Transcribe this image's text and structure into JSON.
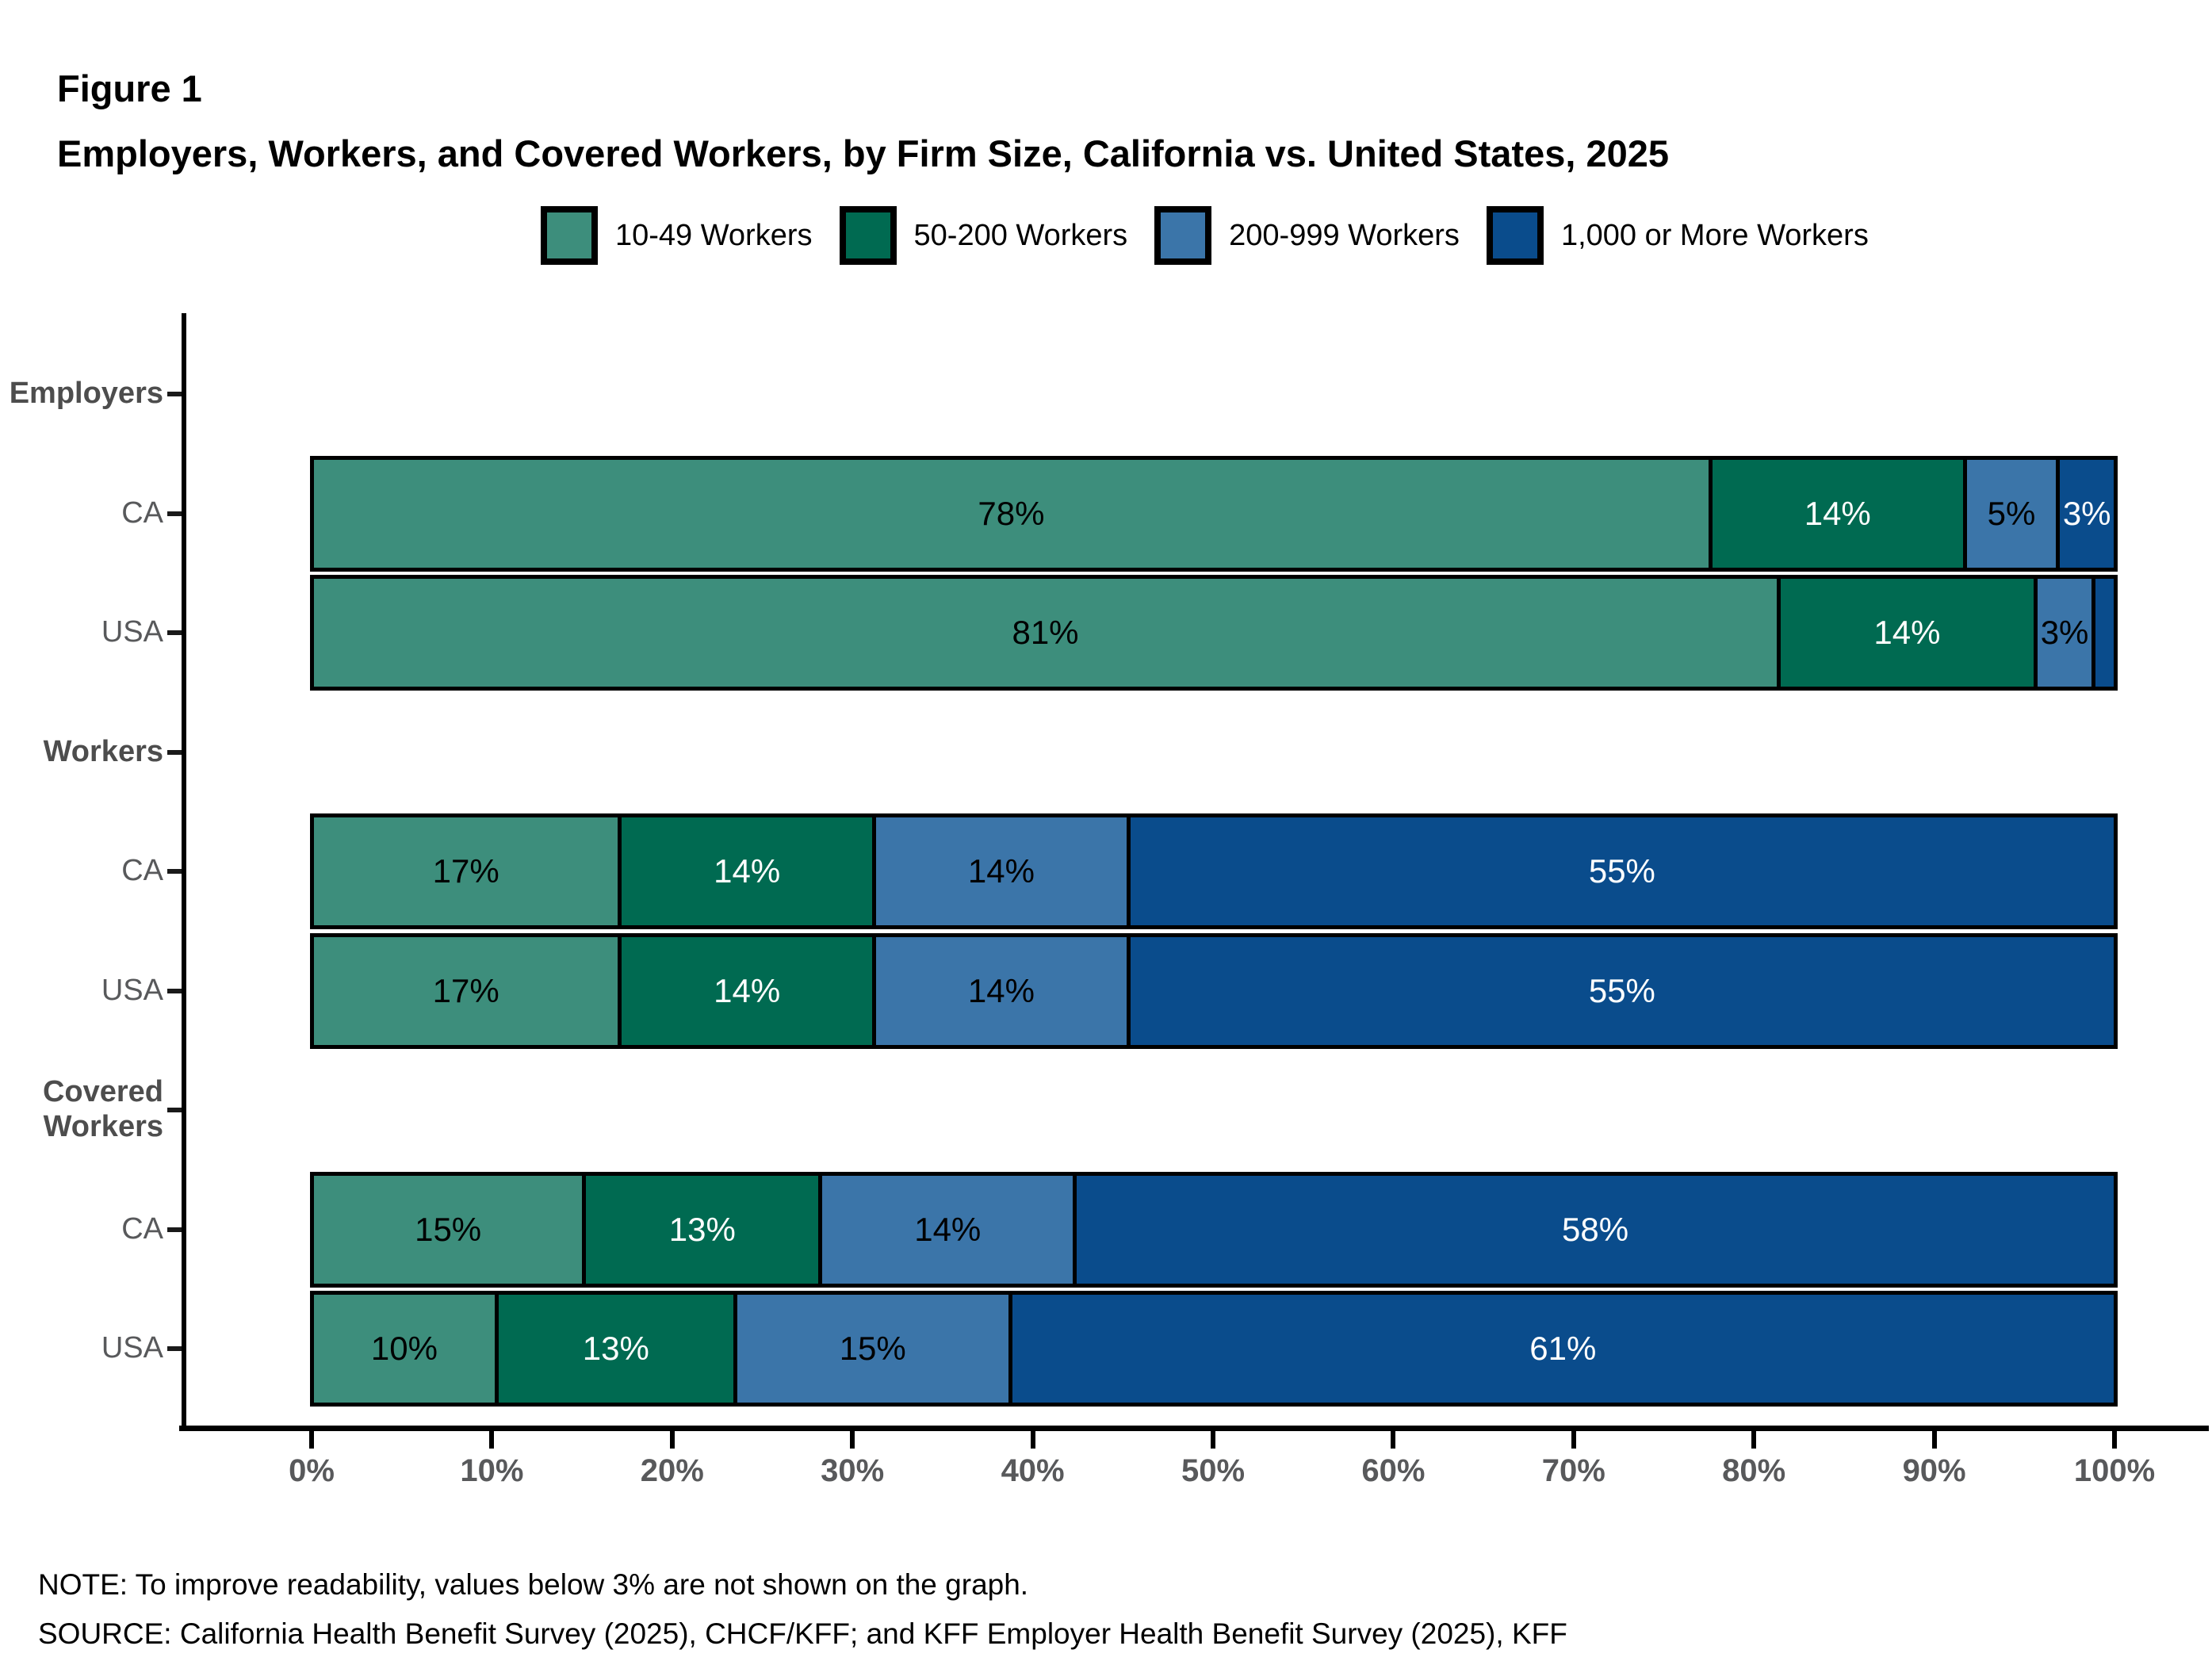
{
  "figure_label": "Figure 1",
  "title": "Employers, Workers, and Covered Workers, by Firm Size, California vs. United States, 2025",
  "note": "NOTE: To improve readability, values below 3% are not shown on the graph.",
  "source": "SOURCE: California Health Benefit Survey (2025), CHCF/KFF; and KFF Employer Health Benefit Survey (2025), KFF",
  "legend": [
    {
      "label": "10-49 Workers",
      "color": "#3D8E7C"
    },
    {
      "label": "50-200 Workers",
      "color": "#006A51"
    },
    {
      "label": "200-999 Workers",
      "color": "#3B75A9"
    },
    {
      "label": "1,000 or More Workers",
      "color": "#0A4C8C"
    }
  ],
  "chart_data": {
    "type": "bar",
    "orientation": "horizontal",
    "stacked": true,
    "unit": "%",
    "title": "Employers, Workers, and Covered Workers, by Firm Size, California vs. United States, 2025",
    "xlabel": "",
    "ylabel": "",
    "xlim": [
      0,
      100
    ],
    "x_ticks": [
      "0%",
      "10%",
      "20%",
      "30%",
      "40%",
      "50%",
      "60%",
      "70%",
      "80%",
      "90%",
      "100%"
    ],
    "legend_position": "top",
    "grid": false,
    "label_rule": "segment labels hidden when value is below 3%",
    "min_label_value": 3,
    "series_names": [
      "10-49 Workers",
      "50-200 Workers",
      "200-999 Workers",
      "1,000 or More Workers"
    ],
    "series_text_colors": [
      "#000000",
      "#ffffff",
      "#000000",
      "#ffffff"
    ],
    "groups": [
      {
        "group": "Employers",
        "rows": [
          {
            "label": "CA",
            "values": [
              78,
              14,
              5,
              3
            ]
          },
          {
            "label": "USA",
            "values": [
              81,
              14,
              3,
              1
            ]
          }
        ]
      },
      {
        "group": "Workers",
        "rows": [
          {
            "label": "CA",
            "values": [
              17,
              14,
              14,
              55
            ]
          },
          {
            "label": "USA",
            "values": [
              17,
              14,
              14,
              55
            ]
          }
        ]
      },
      {
        "group": "Covered Workers",
        "rows": [
          {
            "label": "CA",
            "values": [
              15,
              13,
              14,
              58
            ]
          },
          {
            "label": "USA",
            "values": [
              10,
              13,
              15,
              61
            ]
          }
        ]
      }
    ]
  }
}
